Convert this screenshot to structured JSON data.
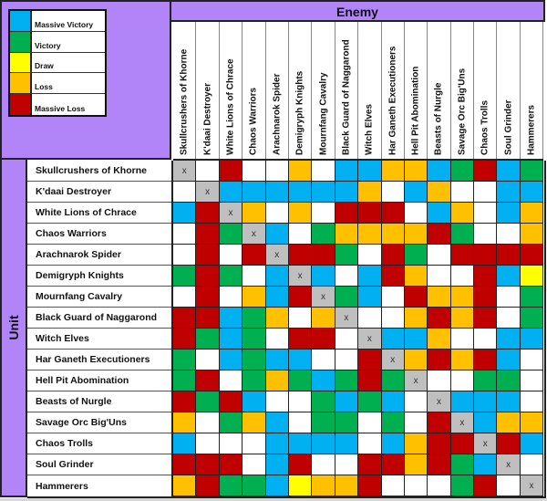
{
  "legend": [
    {
      "key": "B",
      "label": "Massive Victory",
      "color": "#00B0F0"
    },
    {
      "key": "G",
      "label": "Victory",
      "color": "#00B050"
    },
    {
      "key": "Y",
      "label": "Draw",
      "color": "#FFFF00"
    },
    {
      "key": "O",
      "label": "Loss",
      "color": "#FFC000"
    },
    {
      "key": "R",
      "label": "Massive Loss",
      "color": "#C00000"
    }
  ],
  "header": {
    "enemy_label": "Enemy",
    "unit_label": "Unit"
  },
  "colors": {
    "header_purple": "#B185F8",
    "self_gray": "#BFBFBF",
    "empty": "#FFFFFF"
  },
  "chart_data": {
    "type": "heatmap",
    "title": "",
    "xlabel": "Enemy",
    "ylabel": "Unit",
    "legend_position": "top-left",
    "value_scale": {
      "B": "Massive Victory",
      "G": "Victory",
      "Y": "Draw",
      "O": "Loss",
      "R": "Massive Loss",
      "W": "No data",
      "X": "Self (x)"
    },
    "columns": [
      "Skullcrushers of Khorne",
      "K'daai Destroyer",
      "White Lions of Chrace",
      "Chaos Warriors",
      "Arachnarok Spider",
      "Demigryph Knights",
      "Mournfang Cavalry",
      "Black Guard of Naggarond",
      "Witch Elves",
      "Har Ganeth Executioners",
      "Hell Pit Abomination",
      "Beasts of Nurgle",
      "Savage Orc Big'Uns",
      "Chaos Trolls",
      "Soul Grinder",
      "Hammerers"
    ],
    "rows": [
      "Skullcrushers of Khorne",
      "K'daai Destroyer",
      "White Lions of Chrace",
      "Chaos Warriors",
      "Arachnarok Spider",
      "Demigryph Knights",
      "Mournfang Cavalry",
      "Black Guard of Naggarond",
      "Witch Elves",
      "Har Ganeth Executioners",
      "Hell Pit Abomination",
      "Beasts of Nurgle",
      "Savage Orc Big'Uns",
      "Chaos Trolls",
      "Soul Grinder",
      "Hammerers"
    ],
    "values": [
      [
        "X",
        "W",
        "R",
        "W",
        "W",
        "O",
        "W",
        "B",
        "B",
        "O",
        "O",
        "B",
        "G",
        "R",
        "B",
        "G"
      ],
      [
        "W",
        "X",
        "B",
        "B",
        "B",
        "B",
        "B",
        "B",
        "O",
        "W",
        "B",
        "O",
        "W",
        "W",
        "B",
        "B"
      ],
      [
        "B",
        "R",
        "X",
        "O",
        "W",
        "O",
        "W",
        "R",
        "R",
        "R",
        "W",
        "B",
        "O",
        "W",
        "B",
        "O"
      ],
      [
        "W",
        "R",
        "G",
        "X",
        "B",
        "W",
        "G",
        "O",
        "O",
        "O",
        "O",
        "R",
        "G",
        "W",
        "W",
        "O"
      ],
      [
        "W",
        "R",
        "W",
        "R",
        "X",
        "R",
        "R",
        "G",
        "W",
        "R",
        "G",
        "W",
        "R",
        "R",
        "R",
        "R"
      ],
      [
        "G",
        "R",
        "G",
        "W",
        "B",
        "X",
        "B",
        "W",
        "B",
        "R",
        "O",
        "W",
        "W",
        "R",
        "B",
        "Y"
      ],
      [
        "W",
        "R",
        "W",
        "O",
        "B",
        "R",
        "X",
        "G",
        "B",
        "W",
        "R",
        "O",
        "O",
        "R",
        "W",
        "G"
      ],
      [
        "R",
        "R",
        "B",
        "G",
        "O",
        "W",
        "O",
        "X",
        "W",
        "W",
        "O",
        "R",
        "O",
        "R",
        "W",
        "G"
      ],
      [
        "R",
        "G",
        "B",
        "G",
        "W",
        "R",
        "R",
        "W",
        "X",
        "B",
        "B",
        "O",
        "W",
        "W",
        "B",
        "B"
      ],
      [
        "G",
        "W",
        "B",
        "G",
        "B",
        "B",
        "W",
        "W",
        "R",
        "X",
        "O",
        "R",
        "O",
        "R",
        "B",
        "W"
      ],
      [
        "G",
        "R",
        "W",
        "G",
        "O",
        "G",
        "B",
        "G",
        "R",
        "G",
        "X",
        "W",
        "W",
        "G",
        "G",
        "W"
      ],
      [
        "R",
        "G",
        "R",
        "B",
        "W",
        "W",
        "G",
        "B",
        "G",
        "B",
        "W",
        "X",
        "B",
        "B",
        "B",
        "W"
      ],
      [
        "O",
        "W",
        "G",
        "O",
        "B",
        "W",
        "G",
        "G",
        "W",
        "G",
        "W",
        "R",
        "X",
        "B",
        "O",
        "O"
      ],
      [
        "B",
        "W",
        "W",
        "W",
        "B",
        "B",
        "B",
        "B",
        "W",
        "B",
        "O",
        "R",
        "R",
        "X",
        "R",
        "B"
      ],
      [
        "R",
        "R",
        "R",
        "W",
        "B",
        "R",
        "W",
        "W",
        "R",
        "R",
        "O",
        "R",
        "G",
        "B",
        "X",
        "W"
      ],
      [
        "O",
        "R",
        "G",
        "G",
        "B",
        "Y",
        "O",
        "O",
        "R",
        "W",
        "W",
        "W",
        "G",
        "R",
        "W",
        "X"
      ]
    ],
    "self_marker": "x"
  }
}
